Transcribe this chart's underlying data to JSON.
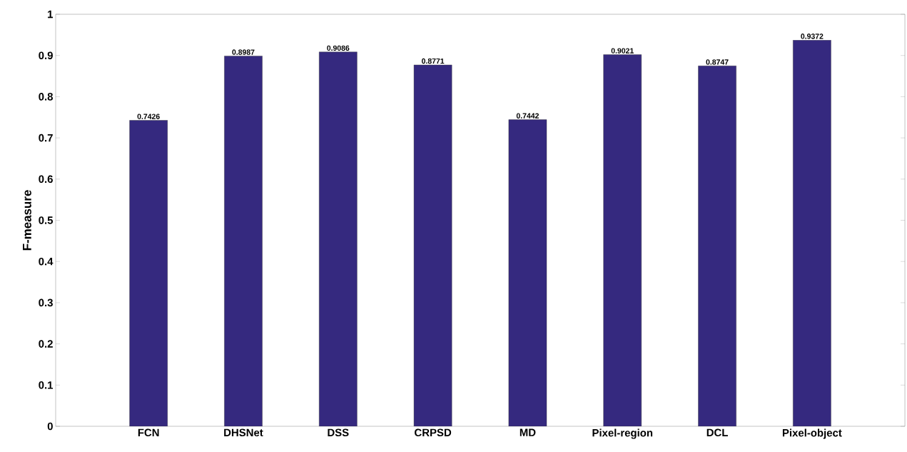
{
  "chart_data": {
    "type": "bar",
    "ylabel": "F-measure",
    "categories": [
      "FCN",
      "DHSNet",
      "DSS",
      "CRPSD",
      "MD",
      "Pixel-region",
      "DCL",
      "Pixel-object"
    ],
    "values": [
      0.7426,
      0.8987,
      0.9086,
      0.8771,
      0.7442,
      0.9021,
      0.8747,
      0.9372
    ],
    "color": "#35297f",
    "ylim": [
      0,
      1
    ],
    "yticks": [
      0,
      0.1,
      0.2,
      0.3,
      0.4,
      0.5,
      0.6,
      0.7,
      0.8,
      0.9,
      1
    ],
    "data_labels": true
  }
}
